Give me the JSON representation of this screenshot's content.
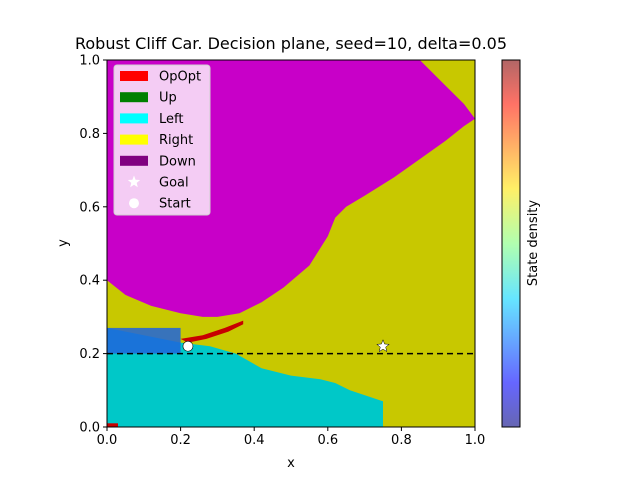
{
  "chart_data": {
    "type": "heatmap",
    "title": "Robust Cliff Car. Decision plane, seed=10, delta=0.05",
    "xlabel": "x",
    "ylabel": "y",
    "xlim": [
      0.0,
      1.0
    ],
    "ylim": [
      0.0,
      1.0
    ],
    "x_ticks": [
      "0.0",
      "0.2",
      "0.4",
      "0.6",
      "0.8",
      "1.0"
    ],
    "y_ticks": [
      "0.0",
      "0.2",
      "0.4",
      "0.6",
      "0.8",
      "1.0"
    ],
    "grid": false,
    "legend_position": "top-left",
    "legend": [
      {
        "label": "OpOpt",
        "color": "#ff0000",
        "kind": "patch"
      },
      {
        "label": "Up",
        "color": "#008000",
        "kind": "patch"
      },
      {
        "label": "Left",
        "color": "#00ffff",
        "kind": "patch"
      },
      {
        "label": "Right",
        "color": "#ffff00",
        "kind": "patch"
      },
      {
        "label": "Down",
        "color": "#800080",
        "kind": "patch"
      },
      {
        "label": "Goal",
        "color": "#ffffff",
        "kind": "star"
      },
      {
        "label": "Start",
        "color": "#ffffff",
        "kind": "circle"
      }
    ],
    "region_colors": {
      "Down": "#c800c8",
      "Right": "#c8c800",
      "Left": "#00c8c8",
      "OpOpt": "#c80000",
      "density": "#1e64dc"
    },
    "regions": {
      "down_boundary": [
        [
          0.0,
          0.4
        ],
        [
          0.05,
          0.36
        ],
        [
          0.12,
          0.33
        ],
        [
          0.2,
          0.31
        ],
        [
          0.26,
          0.3
        ],
        [
          0.3,
          0.3
        ],
        [
          0.36,
          0.31
        ],
        [
          0.42,
          0.34
        ],
        [
          0.48,
          0.38
        ],
        [
          0.55,
          0.44
        ],
        [
          0.6,
          0.52
        ],
        [
          0.62,
          0.57
        ],
        [
          0.65,
          0.6
        ],
        [
          0.7,
          0.63
        ],
        [
          0.78,
          0.68
        ],
        [
          0.85,
          0.73
        ],
        [
          0.92,
          0.78
        ],
        [
          0.97,
          0.82
        ],
        [
          1.0,
          0.84
        ],
        [
          0.97,
          0.88
        ],
        [
          0.92,
          0.93
        ],
        [
          0.85,
          1.0
        ]
      ],
      "left_boundary": [
        [
          0.0,
          0.27
        ],
        [
          0.1,
          0.25
        ],
        [
          0.2,
          0.23
        ],
        [
          0.28,
          0.22
        ],
        [
          0.35,
          0.2
        ],
        [
          0.42,
          0.16
        ],
        [
          0.5,
          0.14
        ],
        [
          0.58,
          0.13
        ],
        [
          0.62,
          0.12
        ],
        [
          0.66,
          0.1
        ],
        [
          0.72,
          0.08
        ],
        [
          0.75,
          0.07
        ],
        [
          0.75,
          0.0
        ]
      ],
      "opopt_strip": [
        [
          0.2,
          0.24
        ],
        [
          0.26,
          0.25
        ],
        [
          0.32,
          0.27
        ],
        [
          0.37,
          0.29
        ],
        [
          0.37,
          0.28
        ],
        [
          0.33,
          0.26
        ],
        [
          0.27,
          0.24
        ],
        [
          0.22,
          0.23
        ]
      ],
      "opopt_corner": [
        [
          0.0,
          0.0
        ],
        [
          0.03,
          0.0
        ],
        [
          0.03,
          0.01
        ],
        [
          0.0,
          0.01
        ]
      ]
    },
    "state_density": {
      "x_range": [
        0.0,
        0.2
      ],
      "y_range": [
        0.2,
        0.27
      ]
    },
    "cliff_line": {
      "y": 0.2,
      "x_range": [
        0.0,
        1.0
      ],
      "style": "dashed"
    },
    "goal": {
      "x": 0.75,
      "y": 0.22
    },
    "start": {
      "x": 0.22,
      "y": 0.22
    },
    "colorbar": {
      "label": "State density",
      "colormap": "jet",
      "alpha": 0.6
    }
  }
}
